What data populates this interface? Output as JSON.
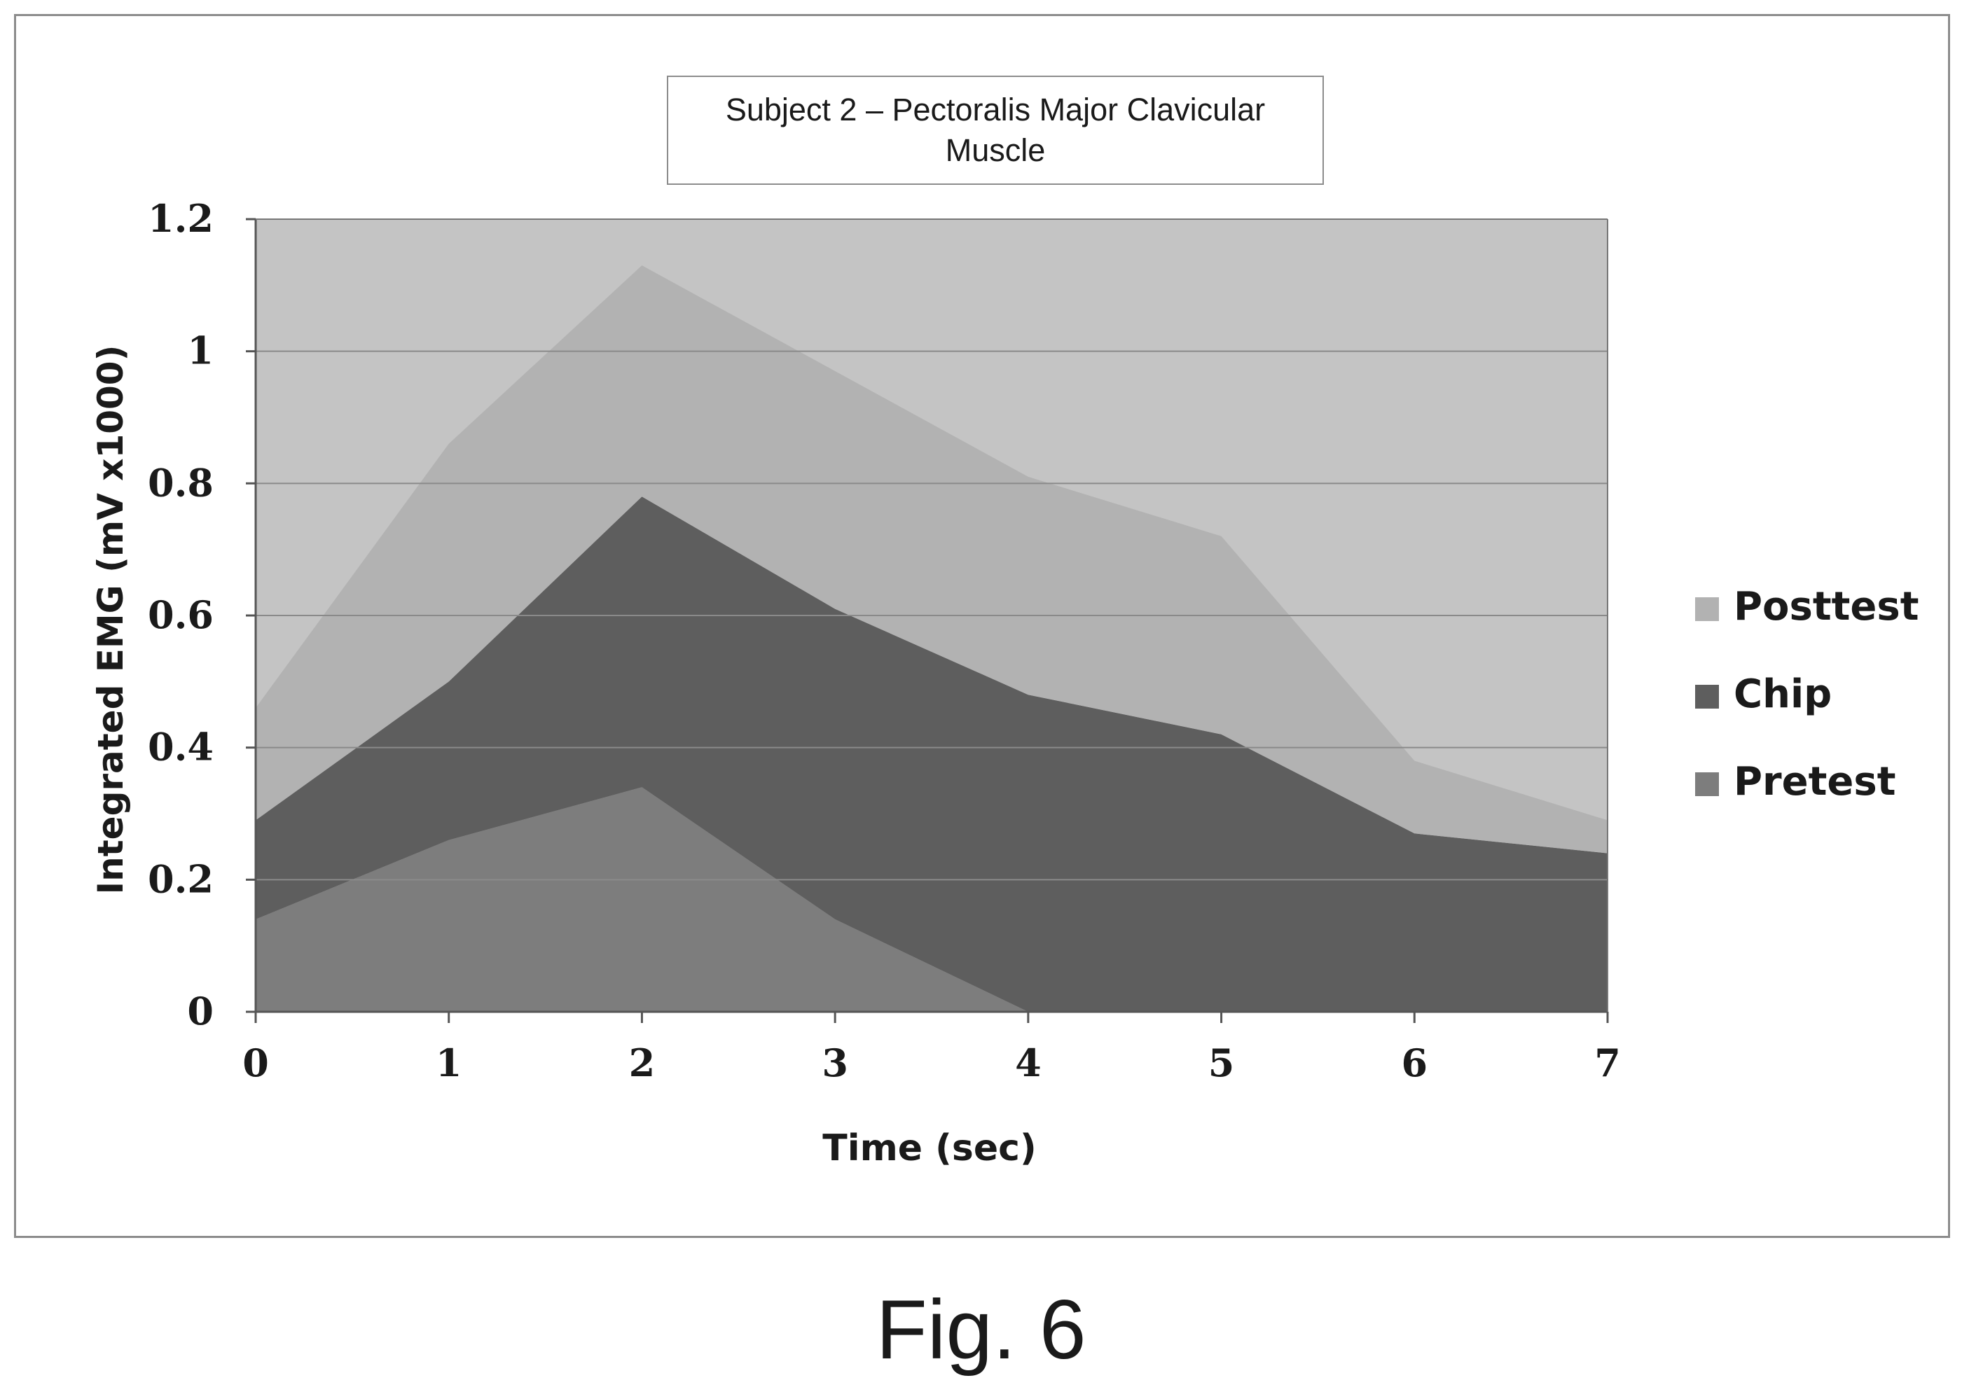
{
  "caption": "Fig. 6",
  "chart_data": {
    "type": "area",
    "stacked": true,
    "title": "Subject 2 – Pectoralis Major Clavicular Muscle",
    "xlabel": "Time (sec)",
    "ylabel": "Integrated EMG (mV x1000)",
    "x": [
      0,
      1,
      2,
      3,
      4,
      5,
      6,
      7
    ],
    "xlim": [
      0,
      7
    ],
    "ylim": [
      0,
      1.2
    ],
    "xticks": [
      "0",
      "1",
      "2",
      "3",
      "4",
      "5",
      "6",
      "7"
    ],
    "yticks": [
      "0",
      "0.2",
      "0.4",
      "0.6",
      "0.8",
      "1",
      "1.2"
    ],
    "grid": "horizontal",
    "legend_position": "right",
    "series": [
      {
        "name": "Pretest",
        "values": [
          0.14,
          0.26,
          0.34,
          0.14,
          0.0,
          0.0,
          0.0,
          0.0
        ],
        "color": "#7d7d7d"
      },
      {
        "name": "Chip",
        "values": [
          0.15,
          0.24,
          0.44,
          0.47,
          0.48,
          0.42,
          0.27,
          0.24
        ],
        "color": "#5e5e5e"
      },
      {
        "name": "Posttest",
        "values": [
          0.17,
          0.36,
          0.35,
          0.36,
          0.33,
          0.3,
          0.11,
          0.05
        ],
        "color": "#b2b2b2"
      }
    ],
    "legend_order": [
      "Posttest",
      "Chip",
      "Pretest"
    ],
    "plot_background": "#c4c4c4"
  }
}
